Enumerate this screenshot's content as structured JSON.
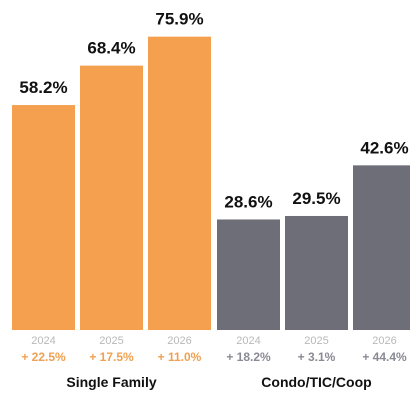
{
  "chart_data": {
    "type": "bar",
    "ylim": [
      0,
      100
    ],
    "grid": false,
    "groups": [
      {
        "name": "Single Family",
        "color": "#f5a04e",
        "change_color": "#f0a050",
        "years": [
          "2024",
          "2025",
          "2026"
        ],
        "values": [
          58.2,
          68.4,
          75.9
        ],
        "value_labels": [
          "58.2%",
          "68.4%",
          "75.9%"
        ],
        "changes": [
          "+ 22.5%",
          "+ 17.5%",
          "+ 11.0%"
        ]
      },
      {
        "name": "Condo/TIC/Coop",
        "color": "#6e6e78",
        "change_color": "#8a8a95",
        "years": [
          "2024",
          "2025",
          "2026"
        ],
        "values": [
          28.6,
          29.5,
          42.6
        ],
        "value_labels": [
          "28.6%",
          "29.5%",
          "42.6%"
        ],
        "changes": [
          "+ 18.2%",
          "+ 3.1%",
          "+ 44.4%"
        ]
      }
    ]
  }
}
